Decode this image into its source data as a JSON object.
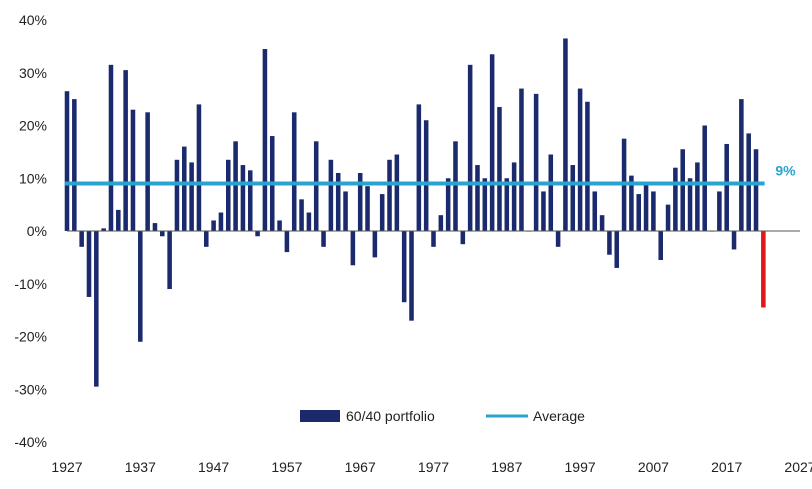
{
  "chart_data": {
    "type": "bar",
    "title": "",
    "xlabel": "",
    "ylabel": "",
    "ylim": [
      -40,
      40
    ],
    "y_ticks": [
      "40%",
      "30%",
      "20%",
      "10%",
      "0%",
      "-10%",
      "-20%",
      "-30%",
      "-40%"
    ],
    "y_tick_values": [
      40,
      30,
      20,
      10,
      0,
      -10,
      -20,
      -30,
      -40
    ],
    "xlim": [
      1927,
      2027
    ],
    "x_ticks": [
      "1927",
      "1937",
      "1947",
      "1957",
      "1967",
      "1977",
      "1987",
      "1997",
      "2007",
      "2017",
      "2027"
    ],
    "x_tick_values": [
      1927,
      1937,
      1947,
      1957,
      1967,
      1977,
      1987,
      1997,
      2007,
      2017,
      2027
    ],
    "grid": false,
    "legend_position": "bottom",
    "series": [
      {
        "name": "60/40 portfolio",
        "color": "#1a2a6c",
        "highlight_color": "#e01818",
        "x": [
          1927,
          1928,
          1929,
          1930,
          1931,
          1932,
          1933,
          1934,
          1935,
          1936,
          1937,
          1938,
          1939,
          1940,
          1941,
          1942,
          1943,
          1944,
          1945,
          1946,
          1947,
          1948,
          1949,
          1950,
          1951,
          1952,
          1953,
          1954,
          1955,
          1956,
          1957,
          1958,
          1959,
          1960,
          1961,
          1962,
          1963,
          1964,
          1965,
          1966,
          1967,
          1968,
          1969,
          1970,
          1971,
          1972,
          1973,
          1974,
          1975,
          1976,
          1977,
          1978,
          1979,
          1980,
          1981,
          1982,
          1983,
          1984,
          1985,
          1986,
          1987,
          1988,
          1989,
          1990,
          1991,
          1992,
          1993,
          1994,
          1995,
          1996,
          1997,
          1998,
          1999,
          2000,
          2001,
          2002,
          2003,
          2004,
          2005,
          2006,
          2007,
          2008,
          2009,
          2010,
          2011,
          2012,
          2013,
          2014,
          2015,
          2016,
          2017,
          2018,
          2019,
          2020,
          2021,
          2022
        ],
        "values": [
          26.5,
          25.0,
          -3.0,
          -12.5,
          -29.5,
          0.5,
          31.5,
          4.0,
          30.5,
          23.0,
          -21.0,
          22.5,
          1.5,
          -1.0,
          -11.0,
          13.5,
          16.0,
          13.0,
          24.0,
          -3.0,
          2.0,
          3.5,
          13.5,
          17.0,
          12.5,
          11.5,
          -1.0,
          34.5,
          18.0,
          2.0,
          -4.0,
          22.5,
          6.0,
          3.5,
          17.0,
          -3.0,
          13.5,
          11.0,
          7.5,
          -6.5,
          11.0,
          8.5,
          -5.0,
          7.0,
          13.5,
          14.5,
          -13.5,
          -17.0,
          24.0,
          21.0,
          -3.0,
          3.0,
          10.0,
          17.0,
          -2.5,
          31.5,
          12.5,
          10.0,
          33.5,
          23.5,
          10.0,
          13.0,
          27.0,
          0.0,
          26.0,
          7.5,
          14.5,
          -3.0,
          36.5,
          12.5,
          27.0,
          24.5,
          7.5,
          3.0,
          -4.5,
          -7.0,
          17.5,
          10.5,
          7.0,
          9.0,
          7.5,
          -5.5,
          5.0,
          12.0,
          15.5,
          10.0,
          13.0,
          20.0,
          0.0,
          7.5,
          16.5,
          -3.5,
          25.0,
          18.5,
          15.5,
          -14.5
        ],
        "highlight_x": 2022
      },
      {
        "name": "Average",
        "type": "hline",
        "color": "#27a4cf",
        "value": 9,
        "label": "9%"
      }
    ]
  }
}
